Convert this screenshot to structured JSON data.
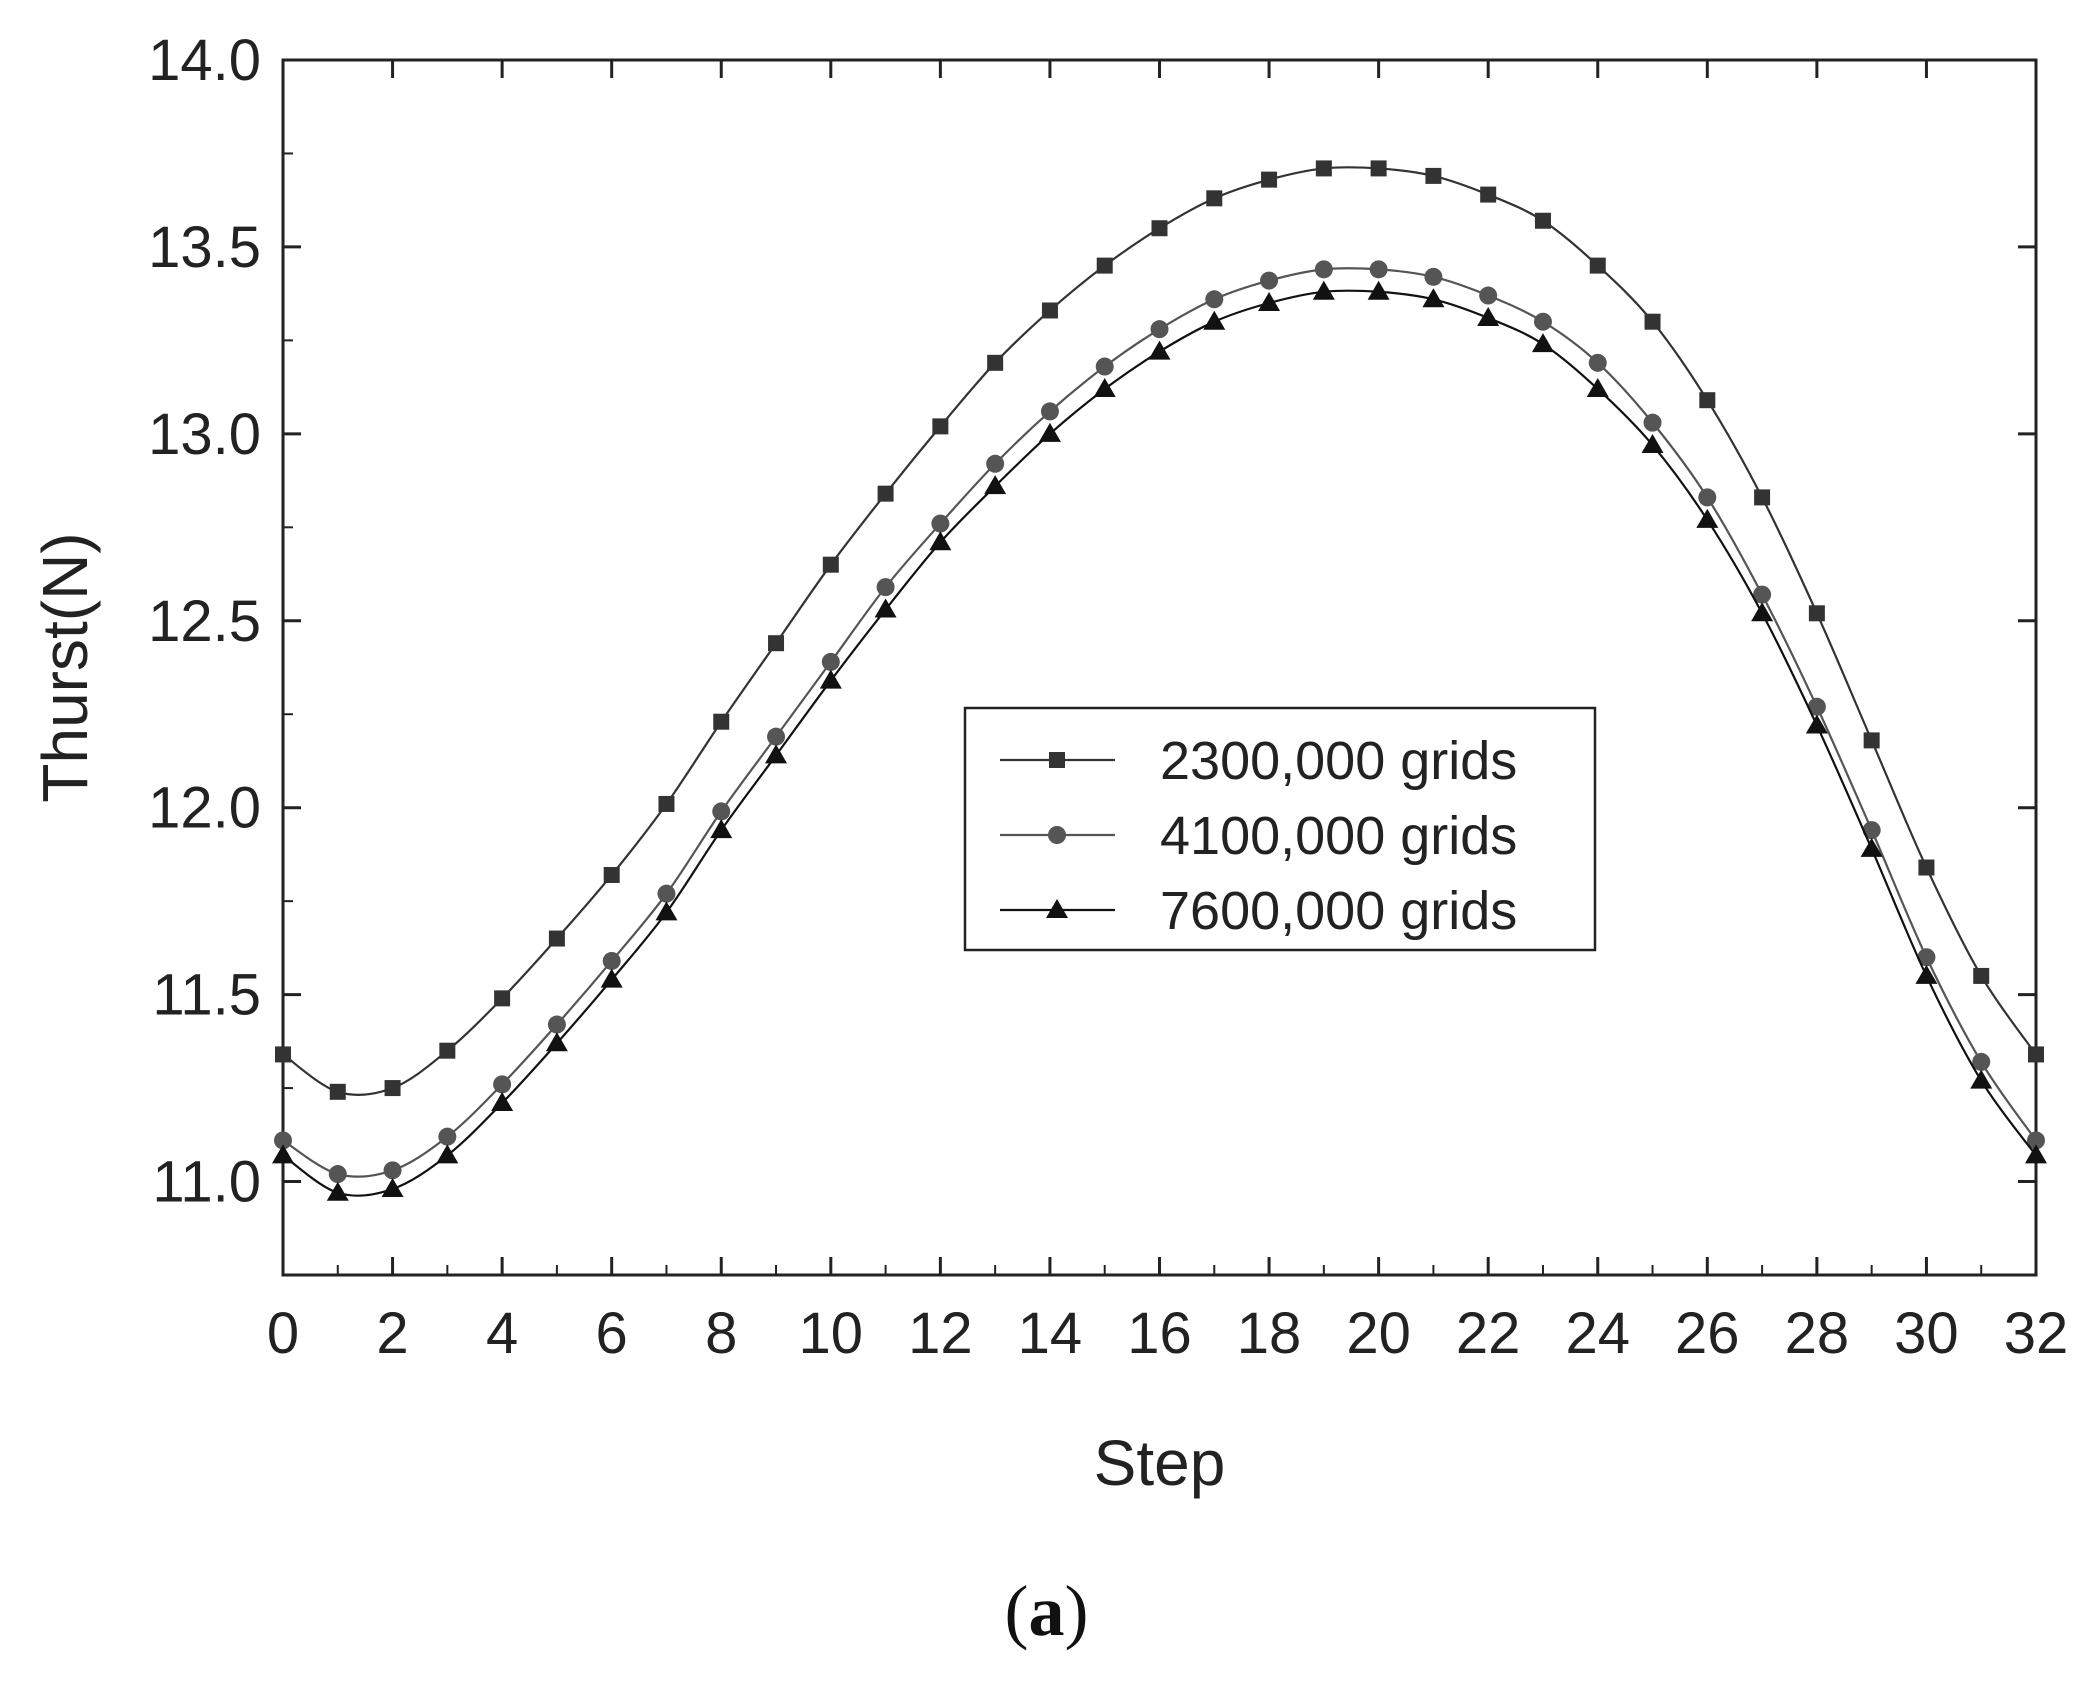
{
  "chart_data": {
    "type": "line",
    "xlabel": "Step",
    "ylabel": "Thurst(N)",
    "xlim": [
      0,
      32
    ],
    "ylim": [
      10.75,
      14.0
    ],
    "xticks": [
      0,
      2,
      4,
      6,
      8,
      10,
      12,
      14,
      16,
      18,
      20,
      22,
      24,
      26,
      28,
      30,
      32
    ],
    "yticks": [
      11.0,
      11.5,
      12.0,
      12.5,
      13.0,
      13.5,
      14.0
    ],
    "ytick_labels": [
      "11.0",
      "11.5",
      "12.0",
      "12.5",
      "13.0",
      "13.5",
      "14.0"
    ],
    "grid": false,
    "legend_position": "center-right",
    "x": [
      0,
      1,
      2,
      3,
      4,
      5,
      6,
      7,
      8,
      9,
      10,
      11,
      12,
      13,
      14,
      15,
      16,
      17,
      18,
      19,
      20,
      21,
      22,
      23,
      24,
      25,
      26,
      27,
      28,
      29,
      30,
      31,
      32
    ],
    "series": [
      {
        "name": "2300,000 grids",
        "marker": "square",
        "color": "#333333",
        "values": [
          11.34,
          11.24,
          11.25,
          11.35,
          11.49,
          11.65,
          11.82,
          12.01,
          12.23,
          12.44,
          12.65,
          12.84,
          13.02,
          13.19,
          13.33,
          13.45,
          13.55,
          13.63,
          13.68,
          13.71,
          13.71,
          13.69,
          13.64,
          13.57,
          13.45,
          13.3,
          13.09,
          12.83,
          12.52,
          12.18,
          11.84,
          11.55,
          11.34
        ]
      },
      {
        "name": "4100,000 grids",
        "marker": "circle",
        "color": "#555555",
        "values": [
          11.11,
          11.02,
          11.03,
          11.12,
          11.26,
          11.42,
          11.59,
          11.77,
          11.99,
          12.19,
          12.39,
          12.59,
          12.76,
          12.92,
          13.06,
          13.18,
          13.28,
          13.36,
          13.41,
          13.44,
          13.44,
          13.42,
          13.37,
          13.3,
          13.19,
          13.03,
          12.83,
          12.57,
          12.27,
          11.94,
          11.6,
          11.32,
          11.11
        ]
      },
      {
        "name": "7600,000 grids",
        "marker": "triangle",
        "color": "#111111",
        "values": [
          11.07,
          10.97,
          10.98,
          11.07,
          11.21,
          11.37,
          11.54,
          11.72,
          11.94,
          12.14,
          12.34,
          12.53,
          12.71,
          12.86,
          13.0,
          13.12,
          13.22,
          13.3,
          13.35,
          13.38,
          13.38,
          13.36,
          13.31,
          13.24,
          13.12,
          12.97,
          12.77,
          12.52,
          12.22,
          11.89,
          11.55,
          11.27,
          11.07
        ]
      }
    ]
  },
  "caption": {
    "open": "(",
    "letter": "a",
    "close": ")"
  }
}
